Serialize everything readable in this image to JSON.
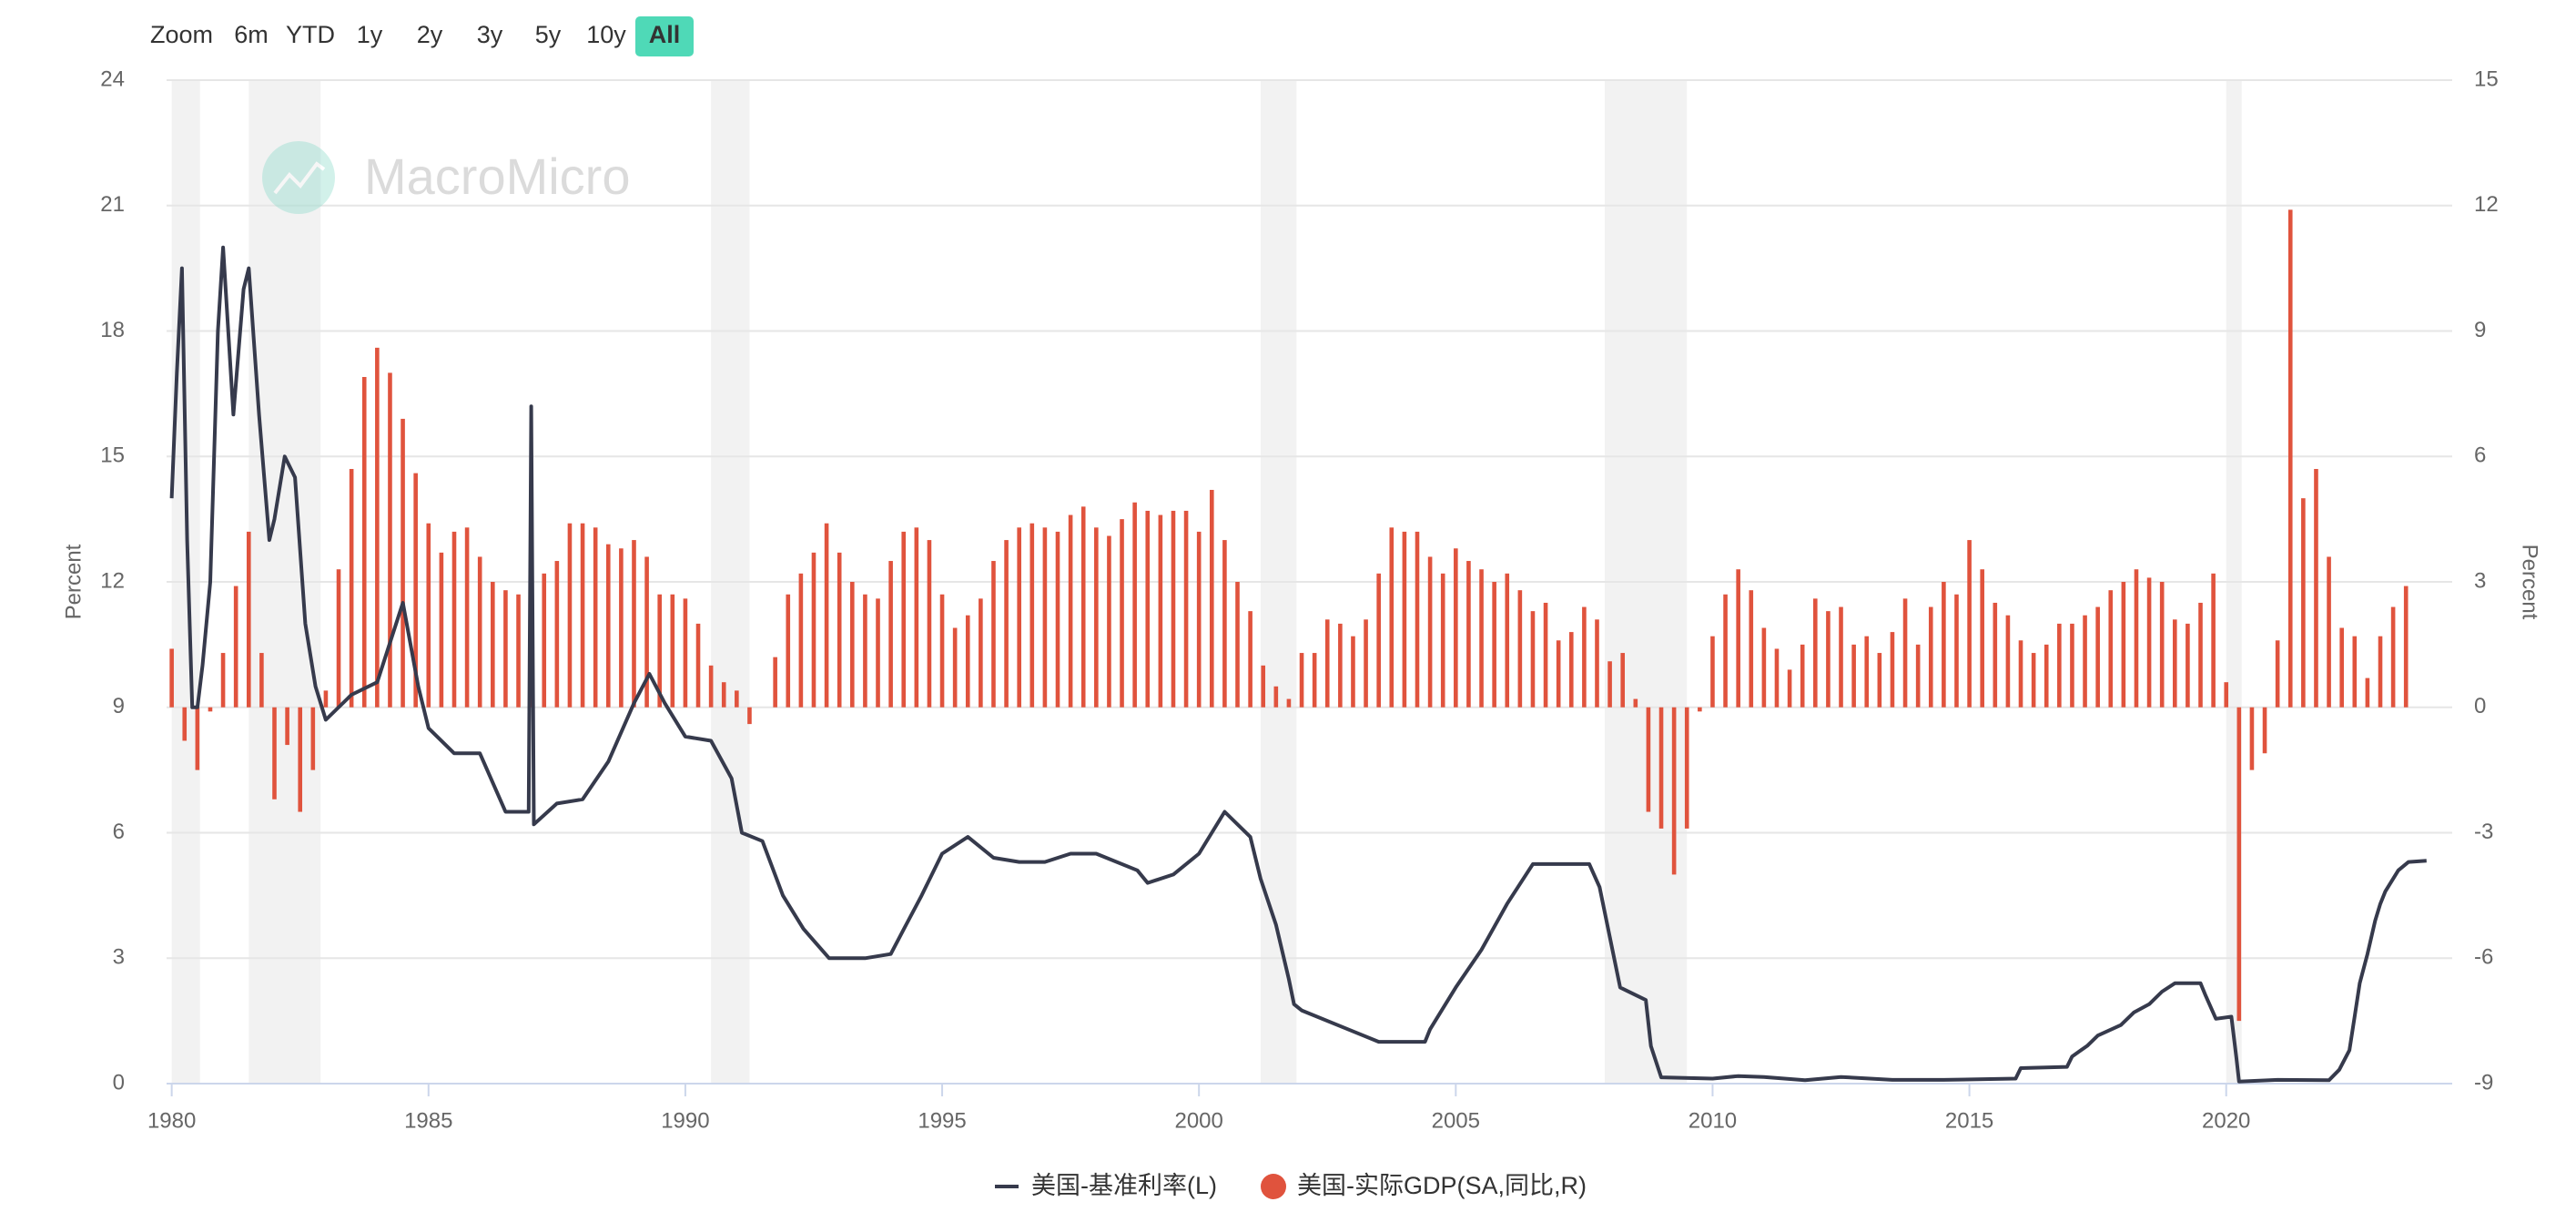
{
  "range_selector": {
    "label": "Zoom",
    "buttons": [
      "6m",
      "YTD",
      "1y",
      "2y",
      "3y",
      "5y",
      "10y",
      "All"
    ],
    "selected": 7
  },
  "watermark": "MacroMicro",
  "chart_data": {
    "type": "line-bar",
    "y_axis_label": "Percent",
    "y2_axis_label": "Percent",
    "xlim": [
      1979.9,
      2024.4
    ],
    "xticks": [
      1980,
      1985,
      1990,
      1995,
      2000,
      2005,
      2010,
      2015,
      2020
    ],
    "ylim": [
      0,
      24
    ],
    "yticks": [
      0,
      3,
      6,
      9,
      12,
      15,
      18,
      21,
      24
    ],
    "y2lim": [
      -9,
      15
    ],
    "y2ticks": [
      -9,
      -6,
      -3,
      0,
      3,
      6,
      9,
      12,
      15
    ],
    "grid": true,
    "legend": "bottom",
    "recessions": [
      [
        1980.0,
        1980.55
      ],
      [
        1981.5,
        1982.9
      ],
      [
        1990.5,
        1991.25
      ],
      [
        2001.2,
        2001.9
      ],
      [
        2007.9,
        2009.5
      ],
      [
        2020.0,
        2020.3
      ]
    ],
    "recession_color": "#f2f2f2",
    "series": [
      {
        "name": "美国-基准利率(L)",
        "type": "line",
        "color": "#363a4c",
        "axis": "y",
        "x": [
          1980.0,
          1980.1,
          1980.2,
          1980.3,
          1980.4,
          1980.5,
          1980.6,
          1980.75,
          1980.9,
          1981.0,
          1981.2,
          1981.4,
          1981.5,
          1981.7,
          1981.9,
          1982.0,
          1982.2,
          1982.4,
          1982.6,
          1982.8,
          1983.0,
          1983.5,
          1984.0,
          1984.5,
          1984.8,
          1985.0,
          1985.5,
          1986.0,
          1986.5,
          1986.95,
          1987.0,
          1987.05,
          1987.5,
          1988.0,
          1988.5,
          1989.0,
          1989.3,
          1989.6,
          1990.0,
          1990.5,
          1990.9,
          1991.1,
          1991.5,
          1991.9,
          1992.3,
          1992.8,
          1993.5,
          1994.0,
          1994.3,
          1994.6,
          1995.0,
          1995.5,
          1996.0,
          1996.5,
          1997.0,
          1997.5,
          1998.0,
          1998.8,
          1999.0,
          1999.5,
          2000.0,
          2000.5,
          2001.0,
          2001.2,
          2001.5,
          2001.75,
          2001.85,
          2002.0,
          2002.9,
          2003.5,
          2004.4,
          2004.5,
          2005.0,
          2005.5,
          2006.0,
          2006.5,
          2007.6,
          2007.8,
          2008.0,
          2008.2,
          2008.7,
          2008.8,
          2009.0,
          2010.0,
          2010.5,
          2011.0,
          2011.8,
          2012.5,
          2013.5,
          2014.5,
          2015.9,
          2016.0,
          2016.9,
          2017.0,
          2017.3,
          2017.5,
          2017.95,
          2018.2,
          2018.5,
          2018.75,
          2019.0,
          2019.5,
          2019.6,
          2019.8,
          2020.1,
          2020.2,
          2020.25,
          2021.0,
          2022.0,
          2022.2,
          2022.4,
          2022.5,
          2022.6,
          2022.75,
          2022.9,
          2023.0,
          2023.1,
          2023.35,
          2023.55,
          2023.9
        ],
        "values": [
          14.0,
          17.0,
          19.5,
          13.0,
          9.0,
          9.0,
          10.0,
          12.0,
          18.0,
          20.0,
          16.0,
          19.0,
          19.5,
          16.0,
          13.0,
          13.5,
          15.0,
          14.5,
          11.0,
          9.5,
          8.7,
          9.3,
          9.6,
          11.5,
          9.5,
          8.5,
          7.9,
          7.9,
          6.5,
          6.5,
          16.2,
          6.2,
          6.7,
          6.8,
          7.7,
          9.1,
          9.8,
          9.1,
          8.3,
          8.2,
          7.3,
          6.0,
          5.8,
          4.5,
          3.7,
          3.0,
          3.0,
          3.1,
          3.8,
          4.5,
          5.5,
          5.9,
          5.4,
          5.3,
          5.3,
          5.5,
          5.5,
          5.1,
          4.8,
          5.0,
          5.5,
          6.5,
          5.9,
          4.9,
          3.8,
          2.5,
          1.9,
          1.75,
          1.3,
          1.0,
          1.0,
          1.3,
          2.3,
          3.2,
          4.3,
          5.25,
          5.25,
          4.7,
          3.5,
          2.3,
          2.0,
          0.9,
          0.15,
          0.12,
          0.18,
          0.16,
          0.08,
          0.16,
          0.09,
          0.09,
          0.12,
          0.37,
          0.4,
          0.65,
          0.91,
          1.15,
          1.4,
          1.7,
          1.9,
          2.2,
          2.4,
          2.4,
          2.1,
          1.55,
          1.6,
          0.6,
          0.05,
          0.09,
          0.08,
          0.33,
          0.8,
          1.6,
          2.4,
          3.1,
          3.9,
          4.3,
          4.6,
          5.1,
          5.3,
          5.33
        ]
      },
      {
        "name": "美国-实际GDP(SA,同比,R)",
        "type": "bar",
        "color": "#e0533d",
        "axis": "y2",
        "x": [
          1980,
          1980.25,
          1980.5,
          1980.75,
          1981,
          1981.25,
          1981.5,
          1981.75,
          1982,
          1982.25,
          1982.5,
          1982.75,
          1983,
          1983.25,
          1983.5,
          1983.75,
          1984,
          1984.25,
          1984.5,
          1984.75,
          1985,
          1985.25,
          1985.5,
          1985.75,
          1986,
          1986.25,
          1986.5,
          1986.75,
          1987,
          1987.25,
          1987.5,
          1987.75,
          1988,
          1988.25,
          1988.5,
          1988.75,
          1989,
          1989.25,
          1989.5,
          1989.75,
          1990,
          1990.25,
          1990.5,
          1990.75,
          1991,
          1991.25,
          1991.5,
          1991.75,
          1992,
          1992.25,
          1992.5,
          1992.75,
          1993,
          1993.25,
          1993.5,
          1993.75,
          1994,
          1994.25,
          1994.5,
          1994.75,
          1995,
          1995.25,
          1995.5,
          1995.75,
          1996,
          1996.25,
          1996.5,
          1996.75,
          1997,
          1997.25,
          1997.5,
          1997.75,
          1998,
          1998.25,
          1998.5,
          1998.75,
          1999,
          1999.25,
          1999.5,
          1999.75,
          2000,
          2000.25,
          2000.5,
          2000.75,
          2001,
          2001.25,
          2001.5,
          2001.75,
          2002,
          2002.25,
          2002.5,
          2002.75,
          2003,
          2003.25,
          2003.5,
          2003.75,
          2004,
          2004.25,
          2004.5,
          2004.75,
          2005,
          2005.25,
          2005.5,
          2005.75,
          2006,
          2006.25,
          2006.5,
          2006.75,
          2007,
          2007.25,
          2007.5,
          2007.75,
          2008,
          2008.25,
          2008.5,
          2008.75,
          2009,
          2009.25,
          2009.5,
          2009.75,
          2010,
          2010.25,
          2010.5,
          2010.75,
          2011,
          2011.25,
          2011.5,
          2011.75,
          2012,
          2012.25,
          2012.5,
          2012.75,
          2013,
          2013.25,
          2013.5,
          2013.75,
          2014,
          2014.25,
          2014.5,
          2014.75,
          2015,
          2015.25,
          2015.5,
          2015.75,
          2016,
          2016.25,
          2016.5,
          2016.75,
          2017,
          2017.25,
          2017.5,
          2017.75,
          2018,
          2018.25,
          2018.5,
          2018.75,
          2019,
          2019.25,
          2019.5,
          2019.75,
          2020,
          2020.25,
          2020.5,
          2020.75,
          2021,
          2021.25,
          2021.5,
          2021.75,
          2022,
          2022.25,
          2022.5,
          2022.75,
          2023,
          2023.25,
          2023.5
        ],
        "values": [
          1.4,
          -0.8,
          -1.5,
          -0.1,
          1.3,
          2.9,
          4.2,
          1.3,
          -2.2,
          -0.9,
          -2.5,
          -1.5,
          0.4,
          3.3,
          5.7,
          7.9,
          8.6,
          8.0,
          6.9,
          5.6,
          4.4,
          3.7,
          4.2,
          4.3,
          3.6,
          3.0,
          2.8,
          2.7,
          2.6,
          3.2,
          3.5,
          4.4,
          4.4,
          4.3,
          3.9,
          3.8,
          4.0,
          3.6,
          2.7,
          2.7,
          2.6,
          2.0,
          1.0,
          0.6,
          0.4,
          -0.4,
          0.0,
          1.2,
          2.7,
          3.2,
          3.7,
          4.4,
          3.7,
          3.0,
          2.7,
          2.6,
          3.5,
          4.2,
          4.3,
          4.0,
          2.7,
          1.9,
          2.2,
          2.6,
          3.5,
          4.0,
          4.3,
          4.4,
          4.3,
          4.2,
          4.6,
          4.8,
          4.3,
          4.1,
          4.5,
          4.9,
          4.7,
          4.6,
          4.7,
          4.7,
          4.2,
          5.2,
          4.0,
          3.0,
          2.3,
          1.0,
          0.5,
          0.2,
          1.3,
          1.3,
          2.1,
          2.0,
          1.7,
          2.1,
          3.2,
          4.3,
          4.2,
          4.2,
          3.6,
          3.2,
          3.8,
          3.5,
          3.3,
          3.0,
          3.2,
          2.8,
          2.3,
          2.5,
          1.6,
          1.8,
          2.4,
          2.1,
          1.1,
          1.3,
          0.2,
          -2.5,
          -2.9,
          -4.0,
          -2.9,
          -0.1,
          1.7,
          2.7,
          3.3,
          2.8,
          1.9,
          1.4,
          0.9,
          1.5,
          2.6,
          2.3,
          2.4,
          1.5,
          1.7,
          1.3,
          1.8,
          2.6,
          1.5,
          2.4,
          3.0,
          2.7,
          4.0,
          3.3,
          2.5,
          2.2,
          1.6,
          1.3,
          1.5,
          2.0,
          2.0,
          2.2,
          2.4,
          2.8,
          3.0,
          3.3,
          3.1,
          3.0,
          2.1,
          2.0,
          2.5,
          3.2,
          0.6,
          -7.5,
          -1.5,
          -1.1,
          1.6,
          11.9,
          5.0,
          5.7,
          3.6,
          1.9,
          1.7,
          0.7,
          1.7,
          2.4,
          2.9
        ]
      }
    ]
  }
}
